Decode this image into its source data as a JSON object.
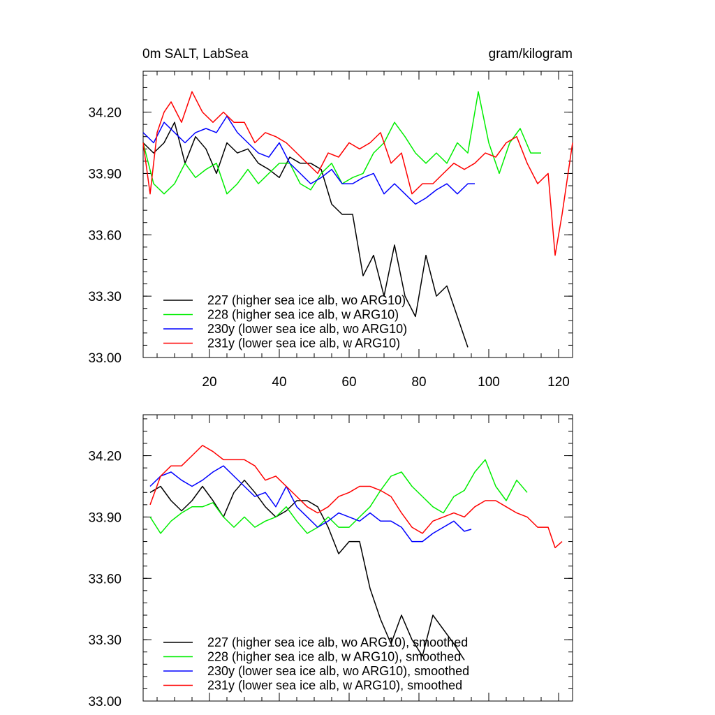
{
  "chart_data": [
    {
      "type": "line",
      "title_left": "0m SALT, LabSea",
      "title_right": "gram/kilogram",
      "xlim": [
        1,
        124
      ],
      "ylim": [
        33.0,
        34.4
      ],
      "xticks": [
        20,
        40,
        60,
        80,
        100,
        120
      ],
      "xtick_labels": [
        "20",
        "40",
        "60",
        "80",
        "100",
        "120"
      ],
      "yticks": [
        33.0,
        33.3,
        33.6,
        33.9,
        34.2
      ],
      "ytick_labels": [
        "33.00",
        "33.30",
        "33.60",
        "33.90",
        "34.20"
      ],
      "series": [
        {
          "name": "227 (higher sea ice alb, wo ARG10)",
          "color": "#000000",
          "x": [
            1,
            4,
            7,
            10,
            13,
            16,
            19,
            22,
            25,
            28,
            31,
            34,
            37,
            40,
            43,
            46,
            49,
            52,
            55,
            58,
            61,
            64,
            67,
            70,
            73,
            76,
            79,
            82,
            85,
            88,
            91,
            94
          ],
          "values": [
            34.05,
            34.0,
            34.05,
            34.15,
            33.95,
            34.08,
            34.02,
            33.9,
            34.05,
            34.0,
            34.02,
            33.95,
            33.92,
            33.88,
            33.98,
            33.95,
            33.95,
            33.92,
            33.75,
            33.7,
            33.7,
            33.4,
            33.5,
            33.3,
            33.55,
            33.3,
            33.2,
            33.5,
            33.3,
            33.35,
            33.2,
            33.05
          ]
        },
        {
          "name": "228 (higher sea ice alb, w ARG10)",
          "color": "#00ee00",
          "x": [
            1,
            4,
            7,
            10,
            13,
            16,
            19,
            22,
            25,
            28,
            31,
            34,
            37,
            40,
            43,
            46,
            49,
            52,
            55,
            58,
            61,
            64,
            67,
            70,
            73,
            76,
            79,
            82,
            85,
            88,
            91,
            94,
            97,
            100,
            103,
            106,
            109,
            112,
            115
          ],
          "values": [
            34.05,
            33.85,
            33.8,
            33.85,
            33.95,
            33.88,
            33.92,
            33.95,
            33.8,
            33.85,
            33.92,
            33.85,
            33.9,
            33.95,
            33.95,
            33.85,
            33.82,
            33.9,
            33.95,
            33.85,
            33.88,
            33.9,
            34.0,
            34.05,
            34.15,
            34.08,
            34.0,
            33.95,
            34.0,
            33.95,
            34.05,
            34.0,
            34.3,
            34.05,
            33.9,
            34.05,
            34.12,
            34.0,
            34.0
          ]
        },
        {
          "name": "230y (lower sea ice alb, wo ARG10)",
          "color": "#0000ff",
          "x": [
            1,
            4,
            7,
            10,
            13,
            16,
            19,
            22,
            25,
            28,
            31,
            34,
            37,
            40,
            43,
            46,
            49,
            52,
            55,
            58,
            61,
            64,
            67,
            70,
            73,
            76,
            79,
            82,
            85,
            88,
            91,
            94,
            96
          ],
          "values": [
            34.1,
            34.05,
            34.15,
            34.1,
            34.05,
            34.1,
            34.12,
            34.1,
            34.18,
            34.1,
            34.05,
            34.0,
            33.98,
            34.05,
            33.95,
            33.9,
            33.85,
            33.88,
            33.92,
            33.85,
            33.85,
            33.88,
            33.9,
            33.8,
            33.85,
            33.8,
            33.75,
            33.78,
            33.82,
            33.85,
            33.8,
            33.85,
            33.85
          ]
        },
        {
          "name": "231y (lower sea ice alb, w ARG10)",
          "color": "#ff0000",
          "x": [
            1,
            3,
            5,
            7,
            9,
            12,
            15,
            18,
            21,
            24,
            27,
            30,
            33,
            36,
            39,
            42,
            45,
            48,
            51,
            54,
            57,
            60,
            63,
            66,
            69,
            72,
            75,
            78,
            81,
            84,
            87,
            90,
            93,
            96,
            99,
            102,
            105,
            108,
            111,
            114,
            117,
            119,
            121,
            124
          ],
          "values": [
            34.05,
            33.8,
            34.1,
            34.2,
            34.25,
            34.15,
            34.3,
            34.2,
            34.15,
            34.2,
            34.15,
            34.15,
            34.05,
            34.1,
            34.08,
            34.05,
            34.0,
            33.95,
            33.9,
            34.0,
            33.98,
            34.05,
            34.02,
            34.05,
            34.1,
            33.95,
            34.0,
            33.8,
            33.85,
            33.85,
            33.9,
            33.95,
            33.92,
            33.95,
            34.0,
            33.98,
            34.05,
            34.08,
            33.95,
            33.85,
            33.9,
            33.5,
            33.7,
            34.05
          ]
        }
      ],
      "legend": "bottom-left"
    },
    {
      "type": "line",
      "xlim": [
        1,
        124
      ],
      "ylim": [
        33.0,
        34.4
      ],
      "xticks": [
        20,
        40,
        60,
        80,
        100,
        120
      ],
      "yticks": [
        33.0,
        33.3,
        33.6,
        33.9,
        34.2
      ],
      "ytick_labels": [
        "33.00",
        "33.30",
        "33.60",
        "33.90",
        "34.20"
      ],
      "series": [
        {
          "name": "227 (higher sea ice alb, wo ARG10), smoothed",
          "color": "#000000",
          "x": [
            3,
            6,
            9,
            12,
            15,
            18,
            21,
            24,
            27,
            30,
            33,
            36,
            39,
            42,
            45,
            48,
            51,
            54,
            57,
            60,
            63,
            66,
            69,
            72,
            75,
            78,
            81,
            84,
            87,
            90,
            93
          ],
          "values": [
            34.02,
            34.05,
            33.98,
            33.93,
            33.98,
            34.05,
            33.98,
            33.9,
            34.02,
            34.08,
            34.02,
            33.95,
            33.9,
            33.93,
            33.98,
            33.98,
            33.95,
            33.85,
            33.72,
            33.78,
            33.78,
            33.55,
            33.4,
            33.28,
            33.42,
            33.3,
            33.22,
            33.42,
            33.35,
            33.28,
            33.2
          ]
        },
        {
          "name": "228 (higher sea ice alb, w ARG10), smoothed",
          "color": "#00ee00",
          "x": [
            3,
            6,
            9,
            12,
            15,
            18,
            21,
            24,
            27,
            30,
            33,
            36,
            39,
            42,
            45,
            48,
            51,
            54,
            57,
            60,
            63,
            66,
            69,
            72,
            75,
            78,
            81,
            84,
            87,
            90,
            93,
            96,
            99,
            102,
            105,
            108,
            111
          ],
          "values": [
            33.9,
            33.82,
            33.88,
            33.92,
            33.95,
            33.95,
            33.97,
            33.9,
            33.85,
            33.9,
            33.85,
            33.88,
            33.9,
            33.95,
            33.88,
            33.82,
            33.85,
            33.9,
            33.85,
            33.85,
            33.9,
            33.95,
            34.03,
            34.1,
            34.12,
            34.05,
            34.0,
            33.95,
            33.92,
            34.0,
            34.03,
            34.12,
            34.18,
            34.05,
            33.98,
            34.08,
            34.02
          ]
        },
        {
          "name": "230y (lower sea ice alb, wo ARG10), smoothed",
          "color": "#0000ff",
          "x": [
            3,
            6,
            9,
            12,
            15,
            18,
            21,
            24,
            27,
            30,
            33,
            36,
            39,
            42,
            45,
            48,
            51,
            54,
            57,
            60,
            63,
            66,
            69,
            72,
            75,
            78,
            81,
            84,
            87,
            90,
            93,
            95
          ],
          "values": [
            34.05,
            34.1,
            34.12,
            34.08,
            34.05,
            34.08,
            34.12,
            34.15,
            34.1,
            34.05,
            34.0,
            34.02,
            33.95,
            34.05,
            33.95,
            33.9,
            33.85,
            33.88,
            33.92,
            33.9,
            33.88,
            33.92,
            33.88,
            33.88,
            33.85,
            33.78,
            33.78,
            33.82,
            33.85,
            33.88,
            33.83,
            33.84
          ]
        },
        {
          "name": "231y (lower sea ice alb, w ARG10), smoothed",
          "color": "#ff0000",
          "x": [
            3,
            6,
            9,
            12,
            15,
            18,
            21,
            24,
            27,
            30,
            33,
            36,
            39,
            42,
            45,
            48,
            51,
            54,
            57,
            60,
            63,
            66,
            69,
            72,
            75,
            78,
            81,
            84,
            87,
            90,
            93,
            96,
            99,
            102,
            105,
            108,
            111,
            114,
            117,
            119,
            121
          ],
          "values": [
            33.96,
            34.1,
            34.15,
            34.15,
            34.2,
            34.25,
            34.22,
            34.18,
            34.18,
            34.18,
            34.15,
            34.08,
            34.1,
            34.05,
            34.0,
            33.95,
            33.92,
            33.95,
            34.0,
            34.02,
            34.05,
            34.05,
            34.03,
            34.0,
            33.92,
            33.85,
            33.82,
            33.88,
            33.9,
            33.92,
            33.9,
            33.95,
            33.98,
            33.98,
            33.95,
            33.92,
            33.9,
            33.85,
            33.85,
            33.75,
            33.78
          ]
        }
      ],
      "legend": "bottom-left"
    }
  ]
}
